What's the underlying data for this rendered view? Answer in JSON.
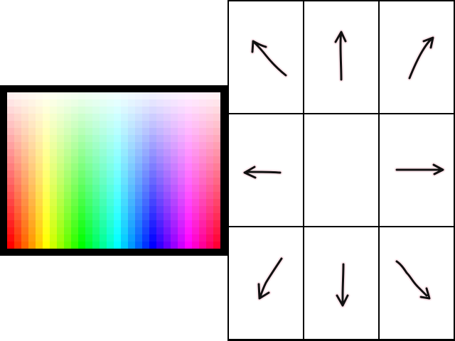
{
  "palette": {
    "name": "color-palette",
    "frame_color": "#000000",
    "columns": 30,
    "rows": 22,
    "hue_range_deg": [
      0,
      360
    ],
    "lightness_top": 0.97,
    "lightness_bottom": 0.5
  },
  "direction_pad": {
    "cells": [
      {
        "direction": "up-left",
        "icon": "arrow-up-left-icon"
      },
      {
        "direction": "up",
        "icon": "arrow-up-icon"
      },
      {
        "direction": "up-right",
        "icon": "arrow-up-right-icon"
      },
      {
        "direction": "left",
        "icon": "arrow-left-icon"
      },
      {
        "direction": "center",
        "icon": ""
      },
      {
        "direction": "right",
        "icon": "arrow-right-icon"
      },
      {
        "direction": "down-left",
        "icon": "arrow-down-left-icon"
      },
      {
        "direction": "down",
        "icon": "arrow-down-icon"
      },
      {
        "direction": "down-right",
        "icon": "arrow-down-right-icon"
      }
    ],
    "stroke_color": "#111111",
    "halo_color": "#fbe7ec",
    "grid_line_color": "#000000"
  }
}
